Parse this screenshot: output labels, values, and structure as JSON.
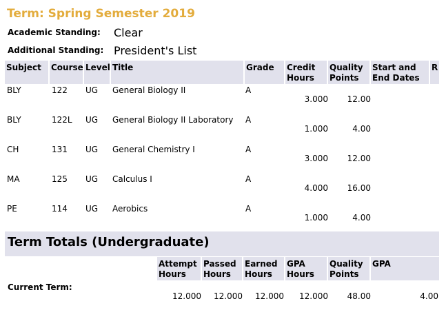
{
  "term_title": "Term: Spring Semester 2019",
  "academic_standing": {
    "label": "Academic Standing:",
    "value": "Clear"
  },
  "additional_standing": {
    "label": "Additional Standing:",
    "value": "President's List"
  },
  "course_table": {
    "headers": {
      "subject": "Subject",
      "course": "Course",
      "level": "Level",
      "title": "Title",
      "grade": "Grade",
      "credit": [
        "Credit",
        "Hours"
      ],
      "quality": [
        "Quality",
        "Points"
      ],
      "dates": [
        "Start and",
        "End Dates"
      ],
      "r": "R"
    },
    "rows": [
      {
        "subject": "BLY",
        "course": "122",
        "level": "UG",
        "title": "General Biology II",
        "grade": "A",
        "credit": "3.000",
        "points": "12.00"
      },
      {
        "subject": "BLY",
        "course": "122L",
        "level": "UG",
        "title": "General Biology II Laboratory",
        "grade": "A",
        "credit": "1.000",
        "points": "4.00"
      },
      {
        "subject": "CH",
        "course": "131",
        "level": "UG",
        "title": "General Chemistry I",
        "grade": "A",
        "credit": "3.000",
        "points": "12.00"
      },
      {
        "subject": "MA",
        "course": "125",
        "level": "UG",
        "title": "Calculus I",
        "grade": "A",
        "credit": "4.000",
        "points": "16.00"
      },
      {
        "subject": "PE",
        "course": "114",
        "level": "UG",
        "title": "Aerobics",
        "grade": "A",
        "credit": "1.000",
        "points": "4.00"
      }
    ]
  },
  "term_totals": {
    "title": "Term Totals (Undergraduate)",
    "headers": {
      "attempt": [
        "Attempt",
        "Hours"
      ],
      "passed": [
        "Passed",
        "Hours"
      ],
      "earned": [
        "Earned",
        "Hours"
      ],
      "gpa_hours": [
        "GPA",
        "Hours"
      ],
      "quality": [
        "Quality",
        "Points"
      ],
      "gpa": "GPA"
    },
    "current_term": {
      "label": "Current Term:",
      "attempt": "12.000",
      "passed": "12.000",
      "earned": "12.000",
      "gpa_hours": "12.000",
      "quality": "48.00",
      "gpa": "4.00"
    }
  }
}
